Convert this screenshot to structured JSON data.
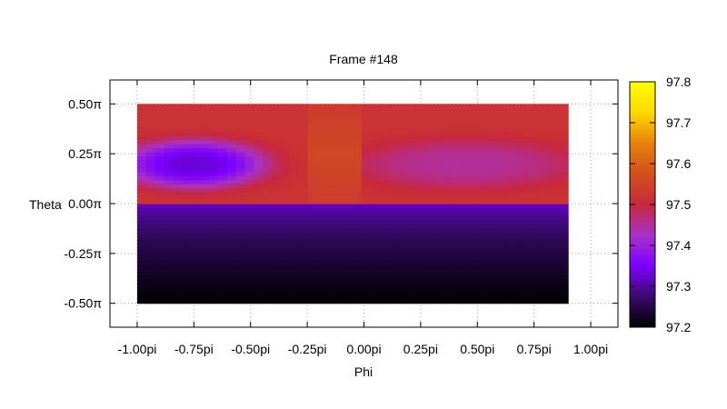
{
  "chart_data": {
    "type": "heatmap",
    "title": "Frame #148",
    "xlabel": "Phi",
    "ylabel": "Theta",
    "xlim": [
      -1.12,
      1.12
    ],
    "ylim": [
      -0.62,
      0.62
    ],
    "data_x_range": [
      -1.0,
      0.9
    ],
    "data_y_range": [
      -0.5,
      0.5
    ],
    "x_ticks": [
      {
        "v": -1.0,
        "label": "-1.00pi"
      },
      {
        "v": -0.75,
        "label": "-0.75pi"
      },
      {
        "v": -0.5,
        "label": "-0.50pi"
      },
      {
        "v": -0.25,
        "label": "-0.25pi"
      },
      {
        "v": 0.0,
        "label": "0.00pi"
      },
      {
        "v": 0.25,
        "label": "0.25pi"
      },
      {
        "v": 0.5,
        "label": "0.50pi"
      },
      {
        "v": 0.75,
        "label": "0.75pi"
      },
      {
        "v": 1.0,
        "label": "1.00pi"
      }
    ],
    "y_ticks": [
      {
        "v": 0.5,
        "label": "0.50π"
      },
      {
        "v": 0.25,
        "label": "0.25π"
      },
      {
        "v": 0.0,
        "label": "0.00π"
      },
      {
        "v": -0.25,
        "label": "-0.25π"
      },
      {
        "v": -0.5,
        "label": "-0.50π"
      }
    ],
    "colorbar": {
      "min": 97.2,
      "max": 97.8,
      "ticks": [
        "97.2",
        "97.3",
        "97.4",
        "97.5",
        "97.6",
        "97.7",
        "97.8"
      ],
      "palette": [
        "#000000",
        "#3a0a6e",
        "#7d00ff",
        "#a832c8",
        "#c8283c",
        "#d2501e",
        "#e6820a",
        "#ffd800",
        "#ffff00"
      ]
    },
    "grid": true,
    "regions": [
      {
        "name": "upper-left",
        "phi": [
          -1.0,
          0.0
        ],
        "theta": [
          0.0,
          0.5
        ],
        "base": 97.52,
        "blob": {
          "phi": -0.75,
          "theta": 0.2,
          "rx": 0.32,
          "ry": 0.12,
          "min": 97.33
        }
      },
      {
        "name": "upper-right",
        "phi": [
          0.0,
          0.9
        ],
        "theta": [
          0.0,
          0.5
        ],
        "base": 97.52,
        "blob": {
          "phi": 0.45,
          "theta": 0.2,
          "rx": 0.5,
          "ry": 0.13,
          "min": 97.45
        }
      },
      {
        "name": "lower",
        "phi": [
          -1.0,
          0.9
        ],
        "theta": [
          -0.5,
          0.0
        ],
        "top": 97.33,
        "bottom": 97.2
      }
    ]
  }
}
